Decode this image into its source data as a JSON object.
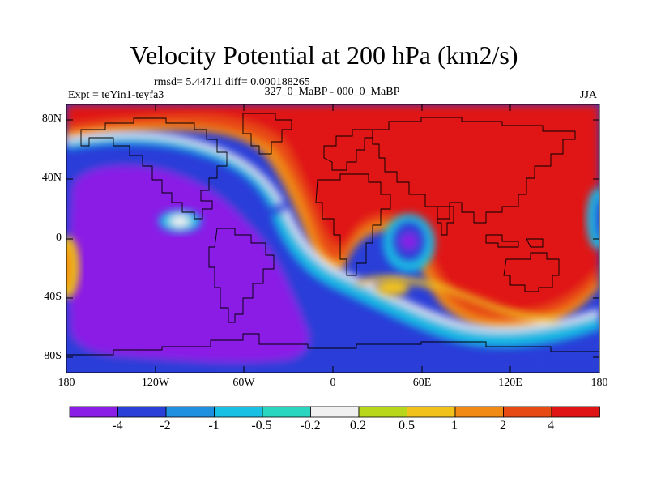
{
  "title": "Velocity Potential at 200 hPa (km2/s)",
  "stats_line": "rmsd= 5.44711 diff= 0.000188265",
  "experiment_label": "Expt = teYin1-teyfa3",
  "subtitle": "327_0_MaBP - 000_0_MaBP",
  "season": "JJA",
  "lat_labels": [
    "80N",
    "40N",
    "0",
    "40S",
    "80S"
  ],
  "lon_labels": [
    "180",
    "120W",
    "60W",
    "0",
    "60E",
    "120E",
    "180"
  ],
  "colorbar": {
    "labels": [
      "-4",
      "-2",
      "-1",
      "-0.5",
      "-0.2",
      "0.2",
      "0.5",
      "1",
      "2",
      "4"
    ],
    "colors": [
      "#8a1ee6",
      "#2a3ed8",
      "#1f8fe0",
      "#18c0e4",
      "#2ad6c0",
      "#f0f0f0",
      "#b8d61a",
      "#f0c21a",
      "#f08a14",
      "#e84a14",
      "#e01414"
    ]
  }
}
